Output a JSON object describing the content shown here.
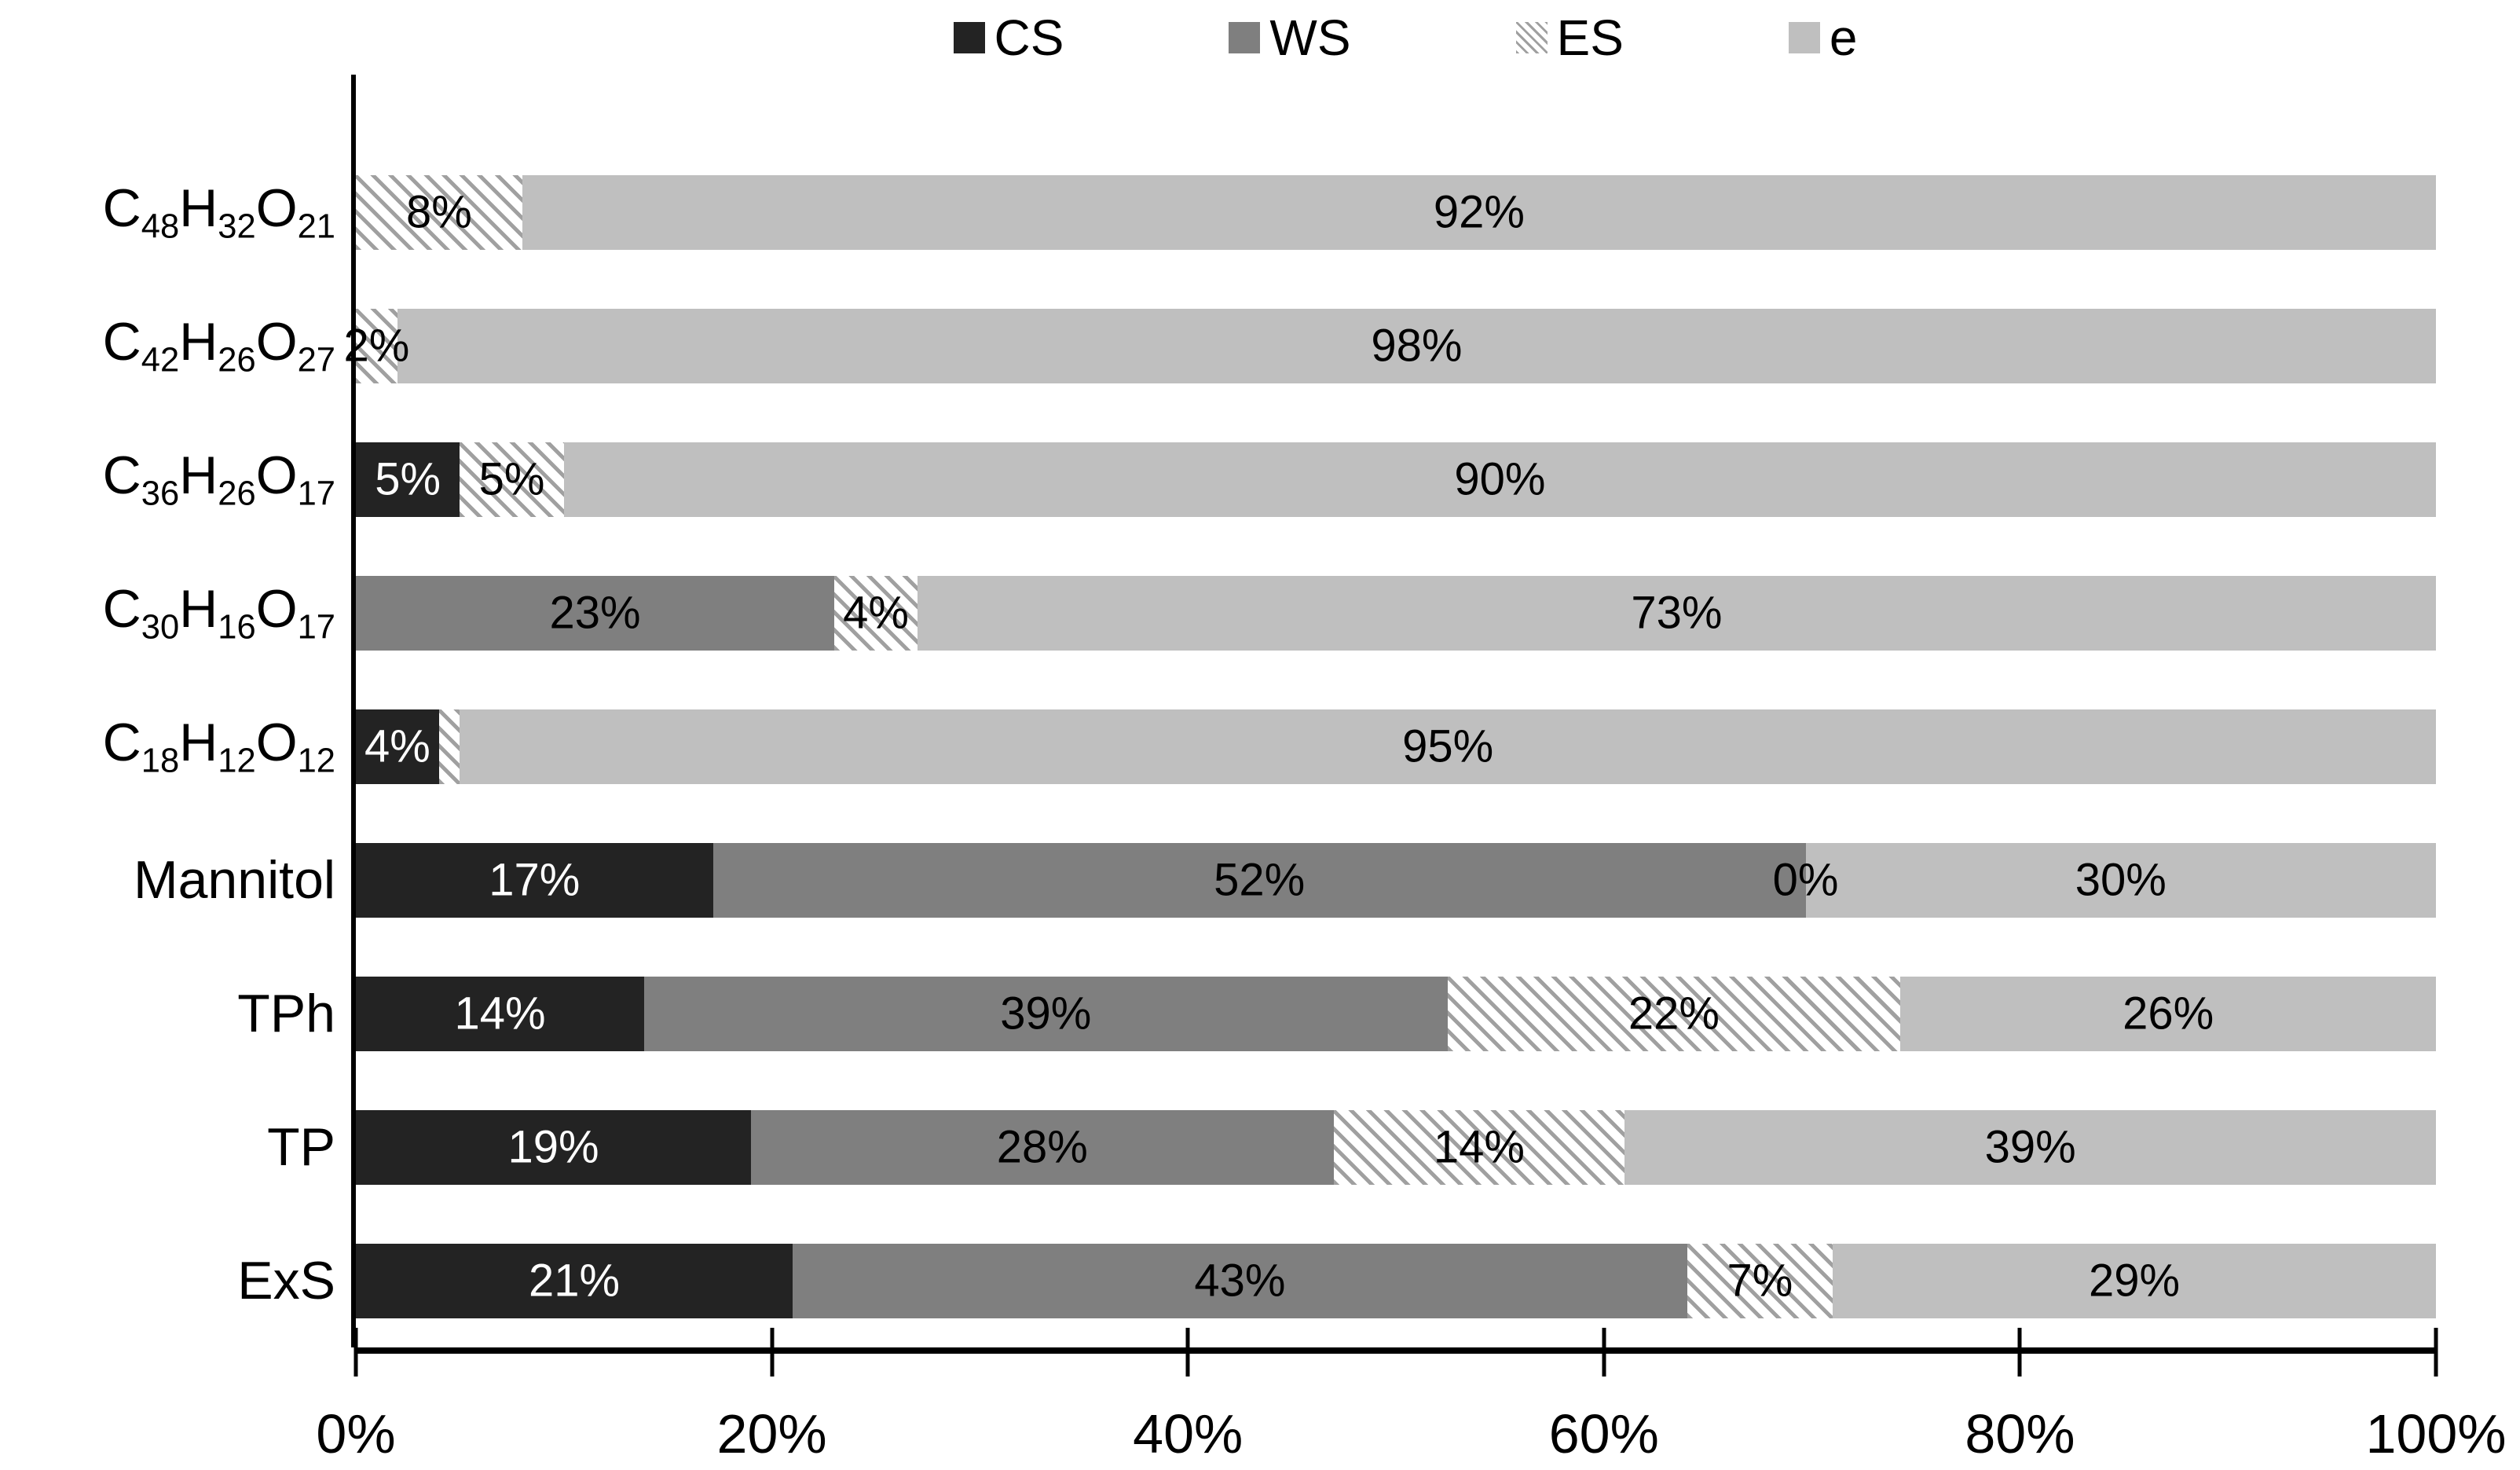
{
  "figure": {
    "background": "#ffffff"
  },
  "chart_data": {
    "type": "bar",
    "orientation": "horizontal",
    "stacked": true,
    "legend_position": "top",
    "grid": false,
    "x_axis": {
      "range": [
        0,
        100
      ],
      "ticks": [
        "0%",
        "20%",
        "40%",
        "60%",
        "80%",
        "100%"
      ]
    },
    "legend_order": [
      "CS",
      "WS",
      "ES",
      "e"
    ],
    "series_styles": {
      "CS": {
        "label": "CS",
        "pattern": "solid",
        "fill": "#232323",
        "text": "#ffffff"
      },
      "WS": {
        "label": "WS",
        "pattern": "solid",
        "fill": "#7f7f7f",
        "text": "#000000"
      },
      "ES": {
        "label": "ES",
        "pattern": "diagonal-hatch",
        "fill": "#ffffff",
        "hatch": "#a0a0a0",
        "text": "#000000"
      },
      "e": {
        "label": "e",
        "pattern": "solid",
        "fill": "#bfbfbf",
        "text": "#000000"
      }
    },
    "rows": [
      {
        "category_parts": [
          [
            "C",
            "48"
          ],
          [
            "H",
            "32"
          ],
          [
            "O",
            "21"
          ]
        ],
        "segments": [
          {
            "series": "ES",
            "value": 8,
            "label": "8%"
          },
          {
            "series": "e",
            "value": 92,
            "label": "92%"
          }
        ]
      },
      {
        "category_parts": [
          [
            "C",
            "42"
          ],
          [
            "H",
            "26"
          ],
          [
            "O",
            "27"
          ]
        ],
        "segments": [
          {
            "series": "ES",
            "value": 2,
            "label": "2%"
          },
          {
            "series": "e",
            "value": 98,
            "label": "98%"
          }
        ]
      },
      {
        "category_parts": [
          [
            "C",
            "36"
          ],
          [
            "H",
            "26"
          ],
          [
            "O",
            "17"
          ]
        ],
        "segments": [
          {
            "series": "CS",
            "value": 5,
            "label": "5%"
          },
          {
            "series": "ES",
            "value": 5,
            "label": "5%"
          },
          {
            "series": "e",
            "value": 90,
            "label": "90%"
          }
        ]
      },
      {
        "category_parts": [
          [
            "C",
            "30"
          ],
          [
            "H",
            "16"
          ],
          [
            "O",
            "17"
          ]
        ],
        "segments": [
          {
            "series": "WS",
            "value": 23,
            "label": "23%"
          },
          {
            "series": "ES",
            "value": 4,
            "label": "4%"
          },
          {
            "series": "e",
            "value": 73,
            "label": "73%"
          }
        ]
      },
      {
        "category_parts": [
          [
            "C",
            "18"
          ],
          [
            "H",
            "12"
          ],
          [
            "O",
            "12"
          ]
        ],
        "segments": [
          {
            "series": "CS",
            "value": 4,
            "label": "4%"
          },
          {
            "series": "ES",
            "value": 1,
            "label": ""
          },
          {
            "series": "e",
            "value": 95,
            "label": "95%"
          }
        ]
      },
      {
        "category_text": "Mannitol",
        "segments": [
          {
            "series": "CS",
            "value": 17,
            "label": "17%"
          },
          {
            "series": "WS",
            "value": 52,
            "label": "52%"
          },
          {
            "series": "ES",
            "value": 0,
            "label": "0%"
          },
          {
            "series": "e",
            "value": 30,
            "label": "30%"
          }
        ]
      },
      {
        "category_text": "TPh",
        "segments": [
          {
            "series": "CS",
            "value": 14,
            "label": "14%"
          },
          {
            "series": "WS",
            "value": 39,
            "label": "39%"
          },
          {
            "series": "ES",
            "value": 22,
            "label": "22%"
          },
          {
            "series": "e",
            "value": 26,
            "label": "26%"
          }
        ]
      },
      {
        "category_text": "TP",
        "segments": [
          {
            "series": "CS",
            "value": 19,
            "label": "19%"
          },
          {
            "series": "WS",
            "value": 28,
            "label": "28%"
          },
          {
            "series": "ES",
            "value": 14,
            "label": "14%"
          },
          {
            "series": "e",
            "value": 39,
            "label": "39%"
          }
        ]
      },
      {
        "category_text": "ExS",
        "segments": [
          {
            "series": "CS",
            "value": 21,
            "label": "21%"
          },
          {
            "series": "WS",
            "value": 43,
            "label": "43%"
          },
          {
            "series": "ES",
            "value": 7,
            "label": "7%"
          },
          {
            "series": "e",
            "value": 29,
            "label": "29%"
          }
        ]
      }
    ]
  }
}
